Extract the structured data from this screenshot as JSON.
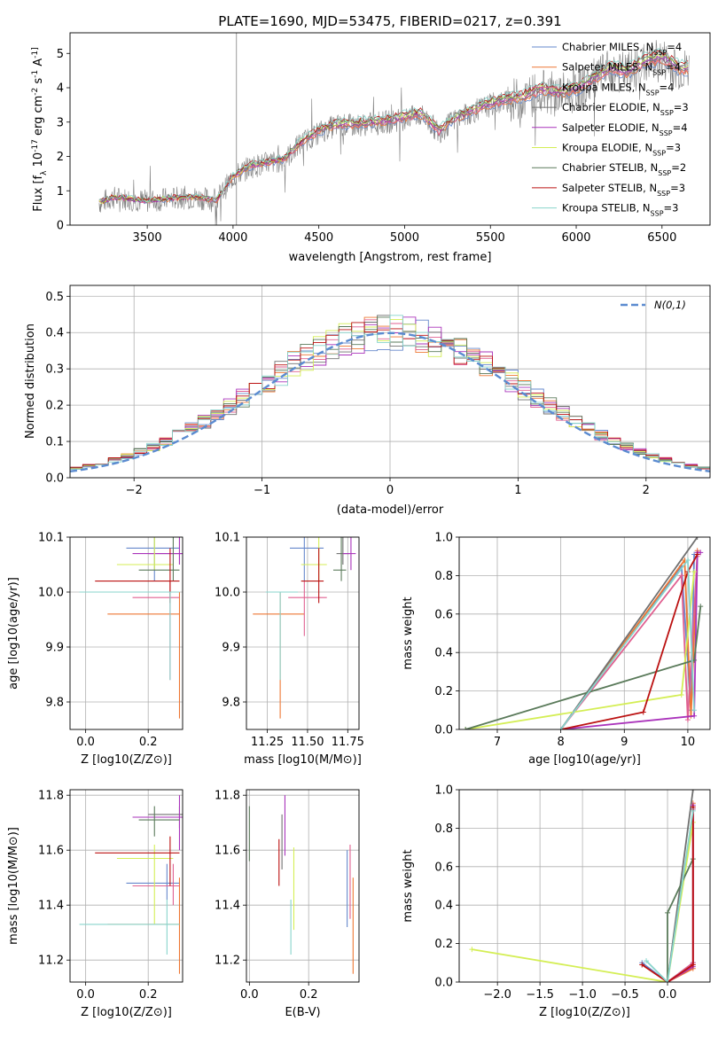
{
  "title": "PLATE=1690, MJD=53475, FIBERID=0217, z=0.391",
  "colors": [
    "#6688cc",
    "#ee7733",
    "#e06090",
    "#707070",
    "#aa33bb",
    "#d4ee55",
    "#5a7a5a",
    "#bb1111",
    "#88d4cc"
  ],
  "legend_labels": [
    "Chabrier MILES, N_SSP=4",
    "Salpeter MILES, N_SSP=4",
    "Kroupa MILES, N_SSP=4",
    "Chabrier ELODIE, N_SSP=3",
    "Salpeter ELODIE, N_SSP=4",
    "Kroupa ELODIE, N_SSP=3",
    "Chabrier STELIB, N_SSP=2",
    "Salpeter STELIB, N_SSP=3",
    "Kroupa STELIB, N_SSP=3"
  ],
  "chart_data": [
    {
      "id": "spectrum",
      "type": "line",
      "title": "PLATE=1690, MJD=53475, FIBERID=0217, z=0.391",
      "xlabel": "wavelength [Angstrom, rest frame]",
      "ylabel": "Flux [f_λ 10^-17 erg cm^-2 s^-1 A^-1]",
      "xlim": [
        3050,
        6780
      ],
      "ylim": [
        0,
        5.6
      ],
      "xticks": [
        3500,
        4000,
        4500,
        5000,
        5500,
        6000,
        6500
      ],
      "yticks": [
        0,
        1,
        2,
        3,
        4,
        5
      ],
      "legend": "top-right",
      "data_x": [
        3220,
        3300,
        3400,
        3500,
        3600,
        3700,
        3800,
        3900,
        4000,
        4100,
        4200,
        4300,
        4400,
        4500,
        4600,
        4700,
        4800,
        4900,
        5000,
        5100,
        5200,
        5300,
        5400,
        5500,
        5600,
        5700,
        5800,
        5900,
        6000,
        6100,
        6200,
        6300,
        6400,
        6500,
        6600
      ],
      "data_y": [
        0.65,
        0.8,
        0.75,
        0.7,
        0.75,
        0.8,
        0.8,
        0.7,
        1.4,
        1.7,
        1.8,
        1.9,
        2.4,
        2.7,
        2.9,
        2.9,
        2.95,
        3.0,
        3.1,
        3.2,
        2.7,
        3.1,
        3.3,
        3.5,
        3.6,
        3.7,
        3.9,
        3.8,
        3.9,
        4.2,
        4.5,
        4.4,
        4.7,
        4.8,
        4.5
      ]
    },
    {
      "id": "residuals",
      "type": "step",
      "xlabel": "(data-model)/error",
      "ylabel": "Normed distribution",
      "xlim": [
        -2.5,
        2.5
      ],
      "ylim": [
        0,
        0.53
      ],
      "xticks": [
        -2,
        -1,
        0,
        1,
        2
      ],
      "yticks": [
        0.0,
        0.1,
        0.2,
        0.3,
        0.4,
        0.5
      ],
      "grid": true,
      "legend": "top-right",
      "reference_label": "N(0,1)"
    },
    {
      "id": "age_vs_Z",
      "type": "errorbar",
      "xlabel": "Z [log10(Z/Z⊙)]",
      "ylabel": "age  [log10(age/yr)]",
      "xlim": [
        -0.05,
        0.31
      ],
      "ylim": [
        9.75,
        10.1
      ],
      "xticks": [
        0.0,
        0.2
      ],
      "yticks": [
        9.8,
        9.9,
        10.0,
        10.1
      ],
      "grid": true,
      "points": [
        {
          "x": 0.22,
          "y": 10.08,
          "xlo": 0.13,
          "xhi": 0.3,
          "ylo": 10.02,
          "yhi": 10.1
        },
        {
          "x": 0.3,
          "y": 9.96,
          "xlo": 0.07,
          "xhi": 0.3,
          "ylo": 9.77,
          "yhi": 10.0
        },
        {
          "x": 0.27,
          "y": 9.99,
          "xlo": 0.15,
          "xhi": 0.3,
          "ylo": 9.84,
          "yhi": 10.02
        },
        {
          "x": 0.3,
          "y": 10.07,
          "xlo": 0.2,
          "xhi": 0.31,
          "ylo": 10.05,
          "yhi": 10.1
        },
        {
          "x": 0.3,
          "y": 10.07,
          "xlo": 0.15,
          "xhi": 0.31,
          "ylo": 10.05,
          "yhi": 10.1
        },
        {
          "x": 0.22,
          "y": 10.05,
          "xlo": 0.1,
          "xhi": 0.28,
          "ylo": 10.04,
          "yhi": 10.1
        },
        {
          "x": 0.28,
          "y": 10.04,
          "xlo": 0.17,
          "xhi": 0.3,
          "ylo": 10.02,
          "yhi": 10.1
        },
        {
          "x": 0.27,
          "y": 10.02,
          "xlo": 0.03,
          "xhi": 0.3,
          "ylo": 9.98,
          "yhi": 10.08
        },
        {
          "x": 0.27,
          "y": 10.0,
          "xlo": -0.02,
          "xhi": 0.3,
          "ylo": 9.84,
          "yhi": 10.0
        }
      ]
    },
    {
      "id": "age_vs_mass",
      "type": "errorbar",
      "xlabel": "mass [log10(M/M⊙)]",
      "ylabel": "",
      "xlim": [
        11.12,
        11.82
      ],
      "ylim": [
        9.75,
        10.1
      ],
      "xticks": [
        11.25,
        11.5,
        11.75
      ],
      "yticks": [
        9.8,
        9.9,
        10.0,
        10.1
      ],
      "grid": true,
      "points": [
        {
          "x": 11.48,
          "y": 10.08,
          "xlo": 11.39,
          "xhi": 11.6,
          "ylo": 10.02,
          "yhi": 10.1
        },
        {
          "x": 11.33,
          "y": 9.96,
          "xlo": 11.16,
          "xhi": 11.48,
          "ylo": 9.77,
          "yhi": 10.0
        },
        {
          "x": 11.48,
          "y": 9.99,
          "xlo": 11.38,
          "xhi": 11.62,
          "ylo": 9.92,
          "yhi": 10.02
        },
        {
          "x": 11.72,
          "y": 10.07,
          "xlo": 11.68,
          "xhi": 11.76,
          "ylo": 10.05,
          "yhi": 10.1
        },
        {
          "x": 11.77,
          "y": 10.07,
          "xlo": 11.72,
          "xhi": 11.8,
          "ylo": 10.04,
          "yhi": 10.1
        },
        {
          "x": 11.57,
          "y": 10.05,
          "xlo": 11.46,
          "xhi": 11.62,
          "ylo": 10.02,
          "yhi": 10.1
        },
        {
          "x": 11.71,
          "y": 10.04,
          "xlo": 11.66,
          "xhi": 11.74,
          "ylo": 10.02,
          "yhi": 10.1
        },
        {
          "x": 11.57,
          "y": 10.02,
          "xlo": 11.46,
          "xhi": 11.6,
          "ylo": 9.98,
          "yhi": 10.08
        },
        {
          "x": 11.33,
          "y": 10.0,
          "xlo": 11.24,
          "xhi": 11.44,
          "ylo": 9.84,
          "yhi": 10.0
        }
      ]
    },
    {
      "id": "mass_vs_Z",
      "type": "errorbar",
      "xlabel": "Z [log10(Z/Z⊙)]",
      "ylabel": "mass [log10(M/M⊙)]",
      "xlim": [
        -0.05,
        0.31
      ],
      "ylim": [
        11.12,
        11.82
      ],
      "xticks": [
        0.0,
        0.2
      ],
      "yticks": [
        11.2,
        11.4,
        11.6,
        11.8
      ],
      "grid": true,
      "points": [
        {
          "x": 0.26,
          "y": 11.48,
          "xlo": 0.13,
          "xhi": 0.3,
          "ylo": 11.42,
          "yhi": 11.55
        },
        {
          "x": 0.3,
          "y": 11.33,
          "xlo": 0.07,
          "xhi": 0.3,
          "ylo": 11.15,
          "yhi": 11.5
        },
        {
          "x": 0.28,
          "y": 11.47,
          "xlo": 0.15,
          "xhi": 0.3,
          "ylo": 11.4,
          "yhi": 11.55
        },
        {
          "x": 0.3,
          "y": 11.73,
          "xlo": 0.2,
          "xhi": 0.31,
          "ylo": 11.68,
          "yhi": 11.76
        },
        {
          "x": 0.3,
          "y": 11.72,
          "xlo": 0.15,
          "xhi": 0.31,
          "ylo": 11.6,
          "yhi": 11.8
        },
        {
          "x": 0.22,
          "y": 11.57,
          "xlo": 0.1,
          "xhi": 0.28,
          "ylo": 11.33,
          "yhi": 11.62
        },
        {
          "x": 0.22,
          "y": 11.71,
          "xlo": 0.17,
          "xhi": 0.3,
          "ylo": 11.65,
          "yhi": 11.76
        },
        {
          "x": 0.27,
          "y": 11.59,
          "xlo": 0.03,
          "xhi": 0.3,
          "ylo": 11.47,
          "yhi": 11.65
        },
        {
          "x": 0.26,
          "y": 11.33,
          "xlo": -0.02,
          "xhi": 0.3,
          "ylo": 11.22,
          "yhi": 11.42
        }
      ]
    },
    {
      "id": "mass_vs_ebv",
      "type": "errorbar",
      "xlabel": "E(B-V)",
      "ylabel": "",
      "xlim": [
        -0.01,
        0.37
      ],
      "ylim": [
        11.12,
        11.82
      ],
      "xticks": [
        0.0,
        0.2
      ],
      "yticks": [
        11.2,
        11.4,
        11.6,
        11.8
      ],
      "grid": true,
      "points": [
        {
          "x": 0.33,
          "y": 11.46,
          "ylo": 11.32,
          "yhi": 11.6
        },
        {
          "x": 0.35,
          "y": 11.33,
          "ylo": 11.15,
          "yhi": 11.5
        },
        {
          "x": 0.34,
          "y": 11.48,
          "ylo": 11.35,
          "yhi": 11.62
        },
        {
          "x": 0.11,
          "y": 11.63,
          "ylo": 11.53,
          "yhi": 11.73
        },
        {
          "x": 0.12,
          "y": 11.68,
          "ylo": 11.58,
          "yhi": 11.8
        },
        {
          "x": 0.15,
          "y": 11.46,
          "ylo": 11.31,
          "yhi": 11.61
        },
        {
          "x": 0.0,
          "y": 11.66,
          "ylo": 11.56,
          "yhi": 11.76
        },
        {
          "x": 0.1,
          "y": 11.55,
          "ylo": 11.47,
          "yhi": 11.64
        },
        {
          "x": 0.14,
          "y": 11.32,
          "ylo": 11.22,
          "yhi": 11.42
        }
      ]
    },
    {
      "id": "massweight_vs_age",
      "type": "line",
      "xlabel": "age  [log10(age/yr)]",
      "ylabel": "mass weight",
      "xlim": [
        6.4,
        10.35
      ],
      "ylim": [
        0,
        1
      ],
      "xticks": [
        7,
        8,
        9,
        10
      ],
      "yticks": [
        0.0,
        0.2,
        0.4,
        0.6,
        0.8,
        1.0
      ],
      "grid": true,
      "series": [
        {
          "x": [
            8.0,
            9.9,
            10.05,
            10.1
          ],
          "y": [
            0.0,
            0.85,
            0.1,
            0.91
          ]
        },
        {
          "x": [
            8.0,
            9.95,
            10.05,
            10.15
          ],
          "y": [
            0.0,
            0.88,
            0.07,
            0.93
          ]
        },
        {
          "x": [
            8.0,
            9.9,
            10.0,
            10.15
          ],
          "y": [
            0.0,
            0.8,
            0.05,
            0.9
          ]
        },
        {
          "x": [
            8.0,
            10.15
          ],
          "y": [
            0.0,
            1.0
          ]
        },
        {
          "x": [
            8.0,
            10.1,
            10.15,
            10.2
          ],
          "y": [
            0.0,
            0.07,
            0.92,
            0.92
          ]
        },
        {
          "x": [
            6.5,
            9.9,
            10.1
          ],
          "y": [
            0.0,
            0.18,
            0.82
          ]
        },
        {
          "x": [
            6.5,
            10.1,
            10.2
          ],
          "y": [
            0.0,
            0.36,
            0.64
          ]
        },
        {
          "x": [
            8.0,
            9.3,
            10.0,
            10.15
          ],
          "y": [
            0.0,
            0.09,
            0.82,
            0.91
          ]
        },
        {
          "x": [
            8.0,
            10.0,
            10.1
          ],
          "y": [
            0.0,
            0.88,
            0.1
          ]
        }
      ]
    },
    {
      "id": "massweight_vs_Z",
      "type": "line",
      "xlabel": "Z [log10(Z/Z⊙)]",
      "ylabel": "mass weight",
      "xlim": [
        -2.45,
        0.5
      ],
      "ylim": [
        0,
        1
      ],
      "xticks": [
        -2.0,
        -1.5,
        -1.0,
        -0.5,
        0.0
      ],
      "yticks": [
        0.0,
        0.2,
        0.4,
        0.6,
        0.8,
        1.0
      ],
      "grid": true,
      "series": [
        {
          "x": [
            -0.3,
            0.0,
            0.3,
            0.3
          ],
          "y": [
            0.1,
            0.0,
            0.1,
            0.9
          ]
        },
        {
          "x": [
            0.0,
            0.3,
            0.3
          ],
          "y": [
            0.0,
            0.07,
            0.93
          ]
        },
        {
          "x": [
            0.0,
            0.3,
            0.3
          ],
          "y": [
            0.0,
            0.1,
            0.9
          ]
        },
        {
          "x": [
            0.0,
            0.3
          ],
          "y": [
            0.0,
            1.0
          ]
        },
        {
          "x": [
            0.0,
            0.3,
            0.3
          ],
          "y": [
            0.0,
            0.08,
            0.92
          ]
        },
        {
          "x": [
            -2.3,
            0.0,
            0.3
          ],
          "y": [
            0.17,
            0.0,
            0.83
          ]
        },
        {
          "x": [
            0.0,
            0.0,
            0.3
          ],
          "y": [
            0.0,
            0.36,
            0.64
          ]
        },
        {
          "x": [
            -0.3,
            0.0,
            0.3,
            0.3
          ],
          "y": [
            0.09,
            0.0,
            0.09,
            0.91
          ]
        },
        {
          "x": [
            -0.25,
            0.0,
            0.3
          ],
          "y": [
            0.11,
            0.0,
            0.89
          ]
        }
      ]
    }
  ]
}
